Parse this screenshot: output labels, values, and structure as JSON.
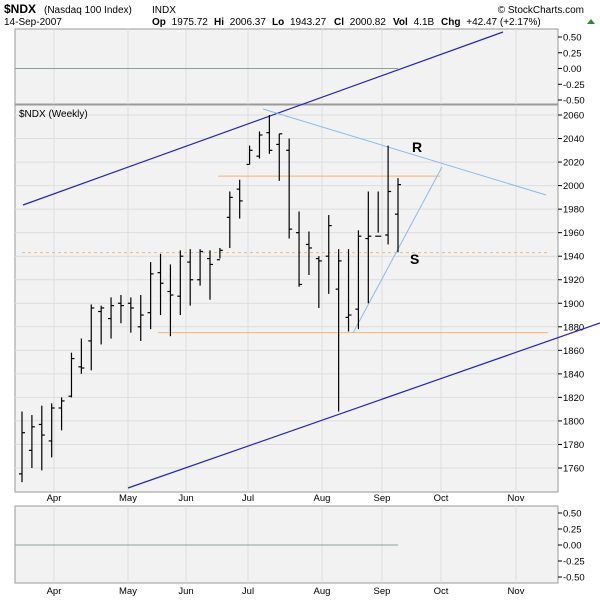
{
  "header": {
    "symbol": "$NDX",
    "name": "(Nasdaq 100 Index)",
    "exchange": "INDX",
    "date": "14-Sep-2007",
    "stats": [
      {
        "label": "Op",
        "value": "1975.72"
      },
      {
        "label": "Hi",
        "value": "2006.37"
      },
      {
        "label": "Lo",
        "value": "1943.27"
      },
      {
        "label": "Cl",
        "value": "2000.82"
      },
      {
        "label": "Vol",
        "value": "4.1B"
      },
      {
        "label": "Chg",
        "value": "+42.47 (+2.17%)"
      }
    ],
    "watermark": "© StockCharts.com",
    "up_marker_color": "#2e8b2e"
  },
  "chart_data": [
    {
      "type": "line",
      "panel": "top-indicator",
      "yticks": [
        "0.50",
        "0.25",
        "0.00",
        "-0.25",
        "-0.50"
      ],
      "ylim": [
        -0.5,
        0.5
      ],
      "series": [
        {
          "values": [
            0.0
          ]
        }
      ]
    },
    {
      "type": "ohlc",
      "panel": "price",
      "title": "$NDX (Weekly)",
      "ylim": [
        1745,
        2068
      ],
      "yticks": [
        1760,
        1780,
        1800,
        1820,
        1840,
        1860,
        1880,
        1900,
        1920,
        1940,
        1960,
        1980,
        2000,
        2020,
        2040,
        2060
      ],
      "xticks": [
        "Apr",
        "May",
        "Jun",
        "Jul",
        "Aug",
        "Sep",
        "Oct",
        "Nov"
      ],
      "grid": true,
      "bars": [
        {
          "o": 1755,
          "h": 1808,
          "l": 1748,
          "c": 1790
        },
        {
          "o": 1775,
          "h": 1805,
          "l": 1760,
          "c": 1795
        },
        {
          "o": 1797,
          "h": 1813,
          "l": 1758,
          "c": 1788
        },
        {
          "o": 1783,
          "h": 1815,
          "l": 1769,
          "c": 1811
        },
        {
          "o": 1811,
          "h": 1820,
          "l": 1792,
          "c": 1817
        },
        {
          "o": 1821,
          "h": 1858,
          "l": 1820,
          "c": 1853
        },
        {
          "o": 1846,
          "h": 1870,
          "l": 1840,
          "c": 1845
        },
        {
          "o": 1868,
          "h": 1899,
          "l": 1843,
          "c": 1896
        },
        {
          "o": 1893,
          "h": 1898,
          "l": 1865,
          "c": 1896
        },
        {
          "o": 1887,
          "h": 1905,
          "l": 1870,
          "c": 1898
        },
        {
          "o": 1900,
          "h": 1907,
          "l": 1883,
          "c": 1898
        },
        {
          "o": 1900,
          "h": 1905,
          "l": 1875,
          "c": 1896
        },
        {
          "o": 1880,
          "h": 1907,
          "l": 1868,
          "c": 1890
        },
        {
          "o": 1892,
          "h": 1935,
          "l": 1878,
          "c": 1925
        },
        {
          "o": 1926,
          "h": 1942,
          "l": 1890,
          "c": 1917
        },
        {
          "o": 1910,
          "h": 1933,
          "l": 1872,
          "c": 1907
        },
        {
          "o": 1906,
          "h": 1945,
          "l": 1890,
          "c": 1940
        },
        {
          "o": 1935,
          "h": 1946,
          "l": 1898,
          "c": 1920
        },
        {
          "o": 1920,
          "h": 1946,
          "l": 1915,
          "c": 1944
        },
        {
          "o": 1938,
          "h": 1945,
          "l": 1903,
          "c": 1933
        },
        {
          "o": 1937,
          "h": 1947,
          "l": 1938,
          "c": 1945
        },
        {
          "o": 1973,
          "h": 1995,
          "l": 1947,
          "c": 1990
        },
        {
          "o": 1997,
          "h": 2005,
          "l": 1972,
          "c": 1987
        },
        {
          "o": 2018,
          "h": 2034,
          "l": 2018,
          "c": 2030
        },
        {
          "o": 2025,
          "h": 2046,
          "l": 2023,
          "c": 2043
        },
        {
          "o": 2045,
          "h": 2060,
          "l": 2027,
          "c": 2030
        },
        {
          "o": 2035,
          "h": 2044,
          "l": 2004,
          "c": 2044
        },
        {
          "o": 2030,
          "h": 2040,
          "l": 1955,
          "c": 1963
        },
        {
          "o": 1960,
          "h": 1978,
          "l": 1914,
          "c": 1916
        },
        {
          "o": 1950,
          "h": 1961,
          "l": 1924,
          "c": 1947
        },
        {
          "o": 1938,
          "h": 1940,
          "l": 1896,
          "c": 1936
        },
        {
          "o": 1940,
          "h": 1975,
          "l": 1908,
          "c": 1966
        },
        {
          "o": 1912,
          "h": 1946,
          "l": 1808,
          "c": 1936
        },
        {
          "o": 1888,
          "h": 1946,
          "l": 1876,
          "c": 1890
        },
        {
          "o": 1895,
          "h": 1962,
          "l": 1878,
          "c": 1957
        },
        {
          "o": 1955,
          "h": 1995,
          "l": 1900,
          "c": 1957
        },
        {
          "o": 1957,
          "h": 1995,
          "l": 1960,
          "c": 1957
        },
        {
          "o": 1958,
          "h": 2034,
          "l": 1950,
          "c": 1995
        },
        {
          "o": 1975.72,
          "h": 2006.37,
          "l": 1943.27,
          "c": 2000.82
        }
      ],
      "annotations": [
        {
          "text": "R",
          "color": "#dd1111"
        },
        {
          "text": "S",
          "color": "#1a3cc8"
        }
      ],
      "colors": {
        "bars": "#000000",
        "channel": "#2222cc",
        "trend": "#88bbee",
        "support_resistance": "#f3b47a"
      }
    },
    {
      "type": "line",
      "panel": "bottom-indicator",
      "yticks": [
        "0.50",
        "0.25",
        "0.00",
        "-0.25",
        "-0.50"
      ],
      "ylim": [
        -0.5,
        0.5
      ],
      "xticks": [
        "Apr",
        "May",
        "Jun",
        "Jul",
        "Aug",
        "Sep",
        "Oct",
        "Nov"
      ],
      "series": [
        {
          "values": [
            0.0
          ]
        }
      ]
    }
  ]
}
